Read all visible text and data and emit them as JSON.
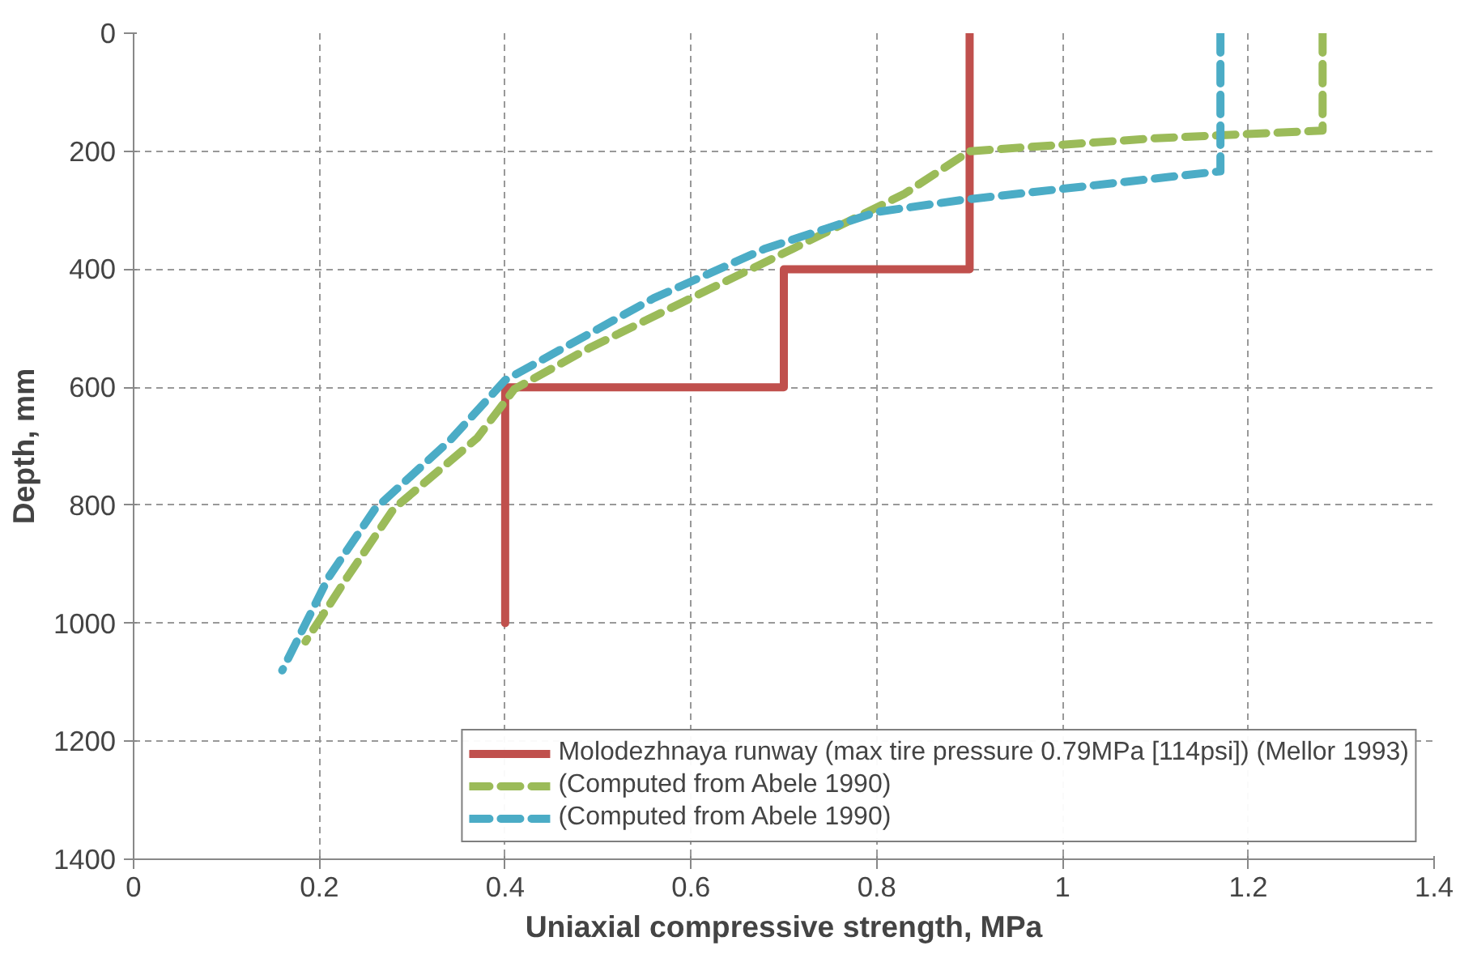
{
  "chart_data": {
    "type": "line",
    "xlabel": "Uniaxial compressive strength, MPa",
    "ylabel": "Depth, mm",
    "xlim": [
      0,
      1.4
    ],
    "xticks": [
      0,
      0.2,
      0.4,
      0.6,
      0.8,
      1,
      1.2,
      1.4
    ],
    "ylim": [
      1400,
      0
    ],
    "yticks": [
      0,
      200,
      400,
      600,
      800,
      1000,
      1200,
      1400
    ],
    "grid": true,
    "legend": "bottom right",
    "marker": "none",
    "series": [
      {
        "name": "Molodezhnaya runway (max tire pressure 0.79MPa [114psi]) (Mellor 1993)",
        "color": "#c0504d",
        "line_style": "solid",
        "x": [
          0.9,
          0.9,
          0.7,
          0.7,
          0.4,
          0.4
        ],
        "values": [
          0,
          400,
          400,
          600,
          600,
          1000
        ]
      },
      {
        "name": "(Computed from Abele 1990)",
        "color": "#9bbb59",
        "line_style": "dashed",
        "x": [
          1.28,
          1.28,
          1.1,
          0.9,
          0.83,
          0.71,
          0.6,
          0.49,
          0.41,
          0.37,
          0.28,
          0.23,
          0.21,
          0.185
        ],
        "values": [
          0,
          165,
          178,
          200,
          272,
          365,
          449,
          534,
          603,
          686,
          806,
          922,
          971,
          1031
        ]
      },
      {
        "name": "(Computed from Abele 1990)",
        "color": "#4bacc6",
        "line_style": "dashed",
        "x": [
          1.17,
          1.17,
          0.89,
          0.8,
          0.68,
          0.56,
          0.4,
          0.34,
          0.26,
          0.21,
          0.16
        ],
        "values": [
          0,
          234,
          283,
          303,
          365,
          449,
          588,
          691,
          806,
          922,
          1080
        ]
      }
    ]
  }
}
